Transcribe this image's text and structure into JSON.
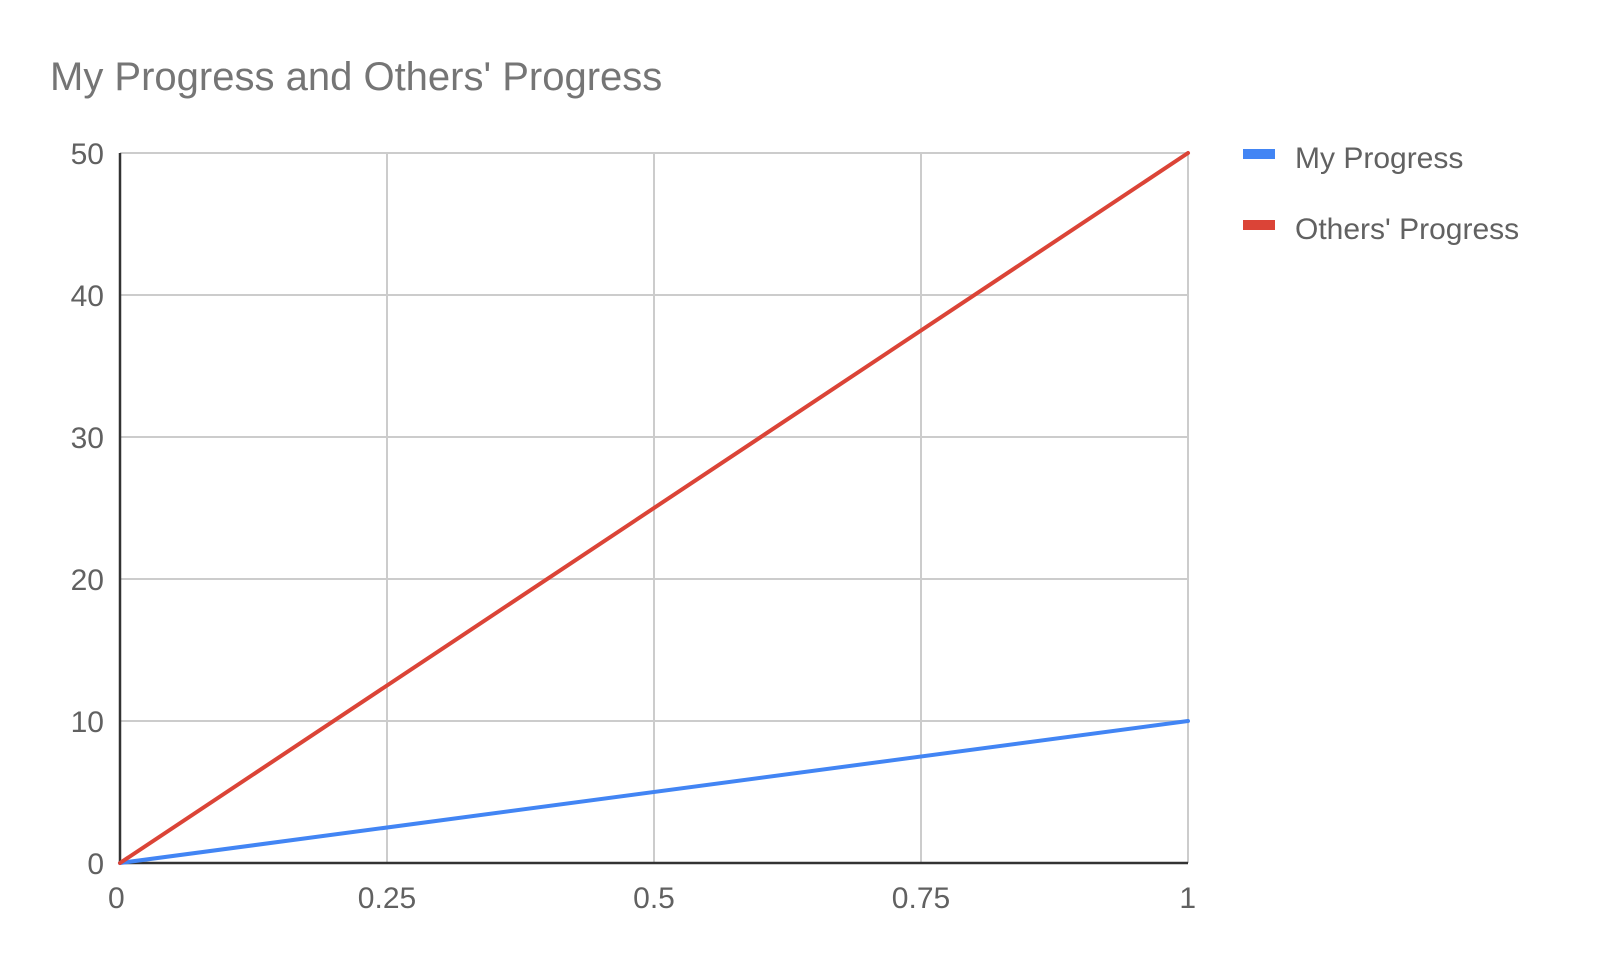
{
  "chart_data": {
    "type": "line",
    "title": "My Progress and Others' Progress",
    "xlabel": "",
    "ylabel": "",
    "x": [
      0,
      1
    ],
    "xlim": [
      0,
      1
    ],
    "ylim": [
      0,
      50
    ],
    "x_ticks": [
      0,
      0.25,
      0.5,
      0.75,
      1
    ],
    "x_tick_labels": [
      "0",
      "0.25",
      "0.5",
      "0.75",
      "1"
    ],
    "y_ticks": [
      0,
      10,
      20,
      30,
      40,
      50
    ],
    "y_tick_labels": [
      "0",
      "10",
      "20",
      "30",
      "40",
      "50"
    ],
    "grid": true,
    "legend_position": "right",
    "series": [
      {
        "name": "My Progress",
        "values": [
          0,
          10
        ],
        "color": "#4285F4"
      },
      {
        "name": "Others' Progress",
        "values": [
          0,
          50
        ],
        "color": "#DB4437"
      }
    ]
  }
}
